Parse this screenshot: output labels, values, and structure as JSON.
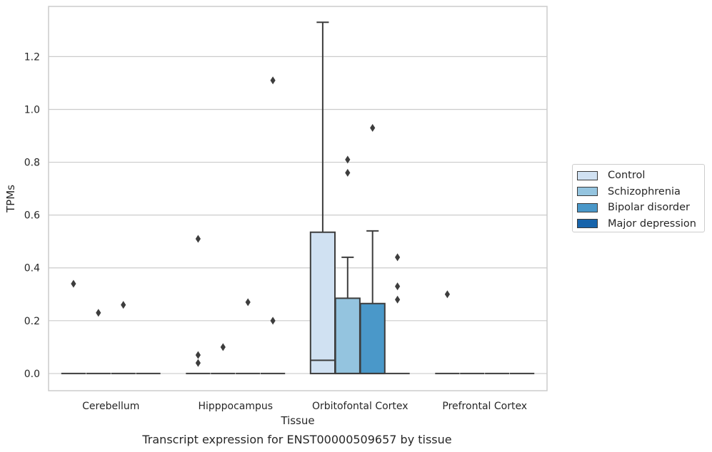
{
  "chart_data": {
    "type": "boxplot",
    "title": "",
    "caption": "Transcript expression for ENST00000509657 by tissue",
    "xlabel": "Tissue",
    "ylabel": "TPMs",
    "ylim": [
      -0.065,
      1.39
    ],
    "yticks": [
      0.0,
      0.2,
      0.4,
      0.6,
      0.8,
      1.0,
      1.2
    ],
    "ytick_labels": [
      "0.0",
      "0.2",
      "0.4",
      "0.6",
      "0.8",
      "1.0",
      "1.2"
    ],
    "categories": [
      "Cerebellum",
      "Hipppocampus",
      "Orbitofontal Cortex",
      "Prefrontal Cortex"
    ],
    "grid": "horizontal",
    "legend_position": "right",
    "series": [
      {
        "name": "Control",
        "color": "#d0e1f2",
        "boxes": [
          {
            "q1": 0,
            "median": 0,
            "q3": 0,
            "whisker_low": 0,
            "whisker_high": 0,
            "outliers": [
              0.34
            ]
          },
          {
            "q1": 0,
            "median": 0,
            "q3": 0,
            "whisker_low": 0,
            "whisker_high": 0,
            "outliers": [
              0.51,
              0.07,
              0.04
            ]
          },
          {
            "q1": 0,
            "median": 0.05,
            "q3": 0.535,
            "whisker_low": 0,
            "whisker_high": 1.33,
            "outliers": []
          },
          {
            "q1": 0,
            "median": 0,
            "q3": 0,
            "whisker_low": 0,
            "whisker_high": 0,
            "outliers": [
              0.3
            ]
          }
        ]
      },
      {
        "name": "Schizophrenia",
        "color": "#94c4df",
        "boxes": [
          {
            "q1": 0,
            "median": 0,
            "q3": 0,
            "whisker_low": 0,
            "whisker_high": 0,
            "outliers": [
              0.23
            ]
          },
          {
            "q1": 0,
            "median": 0,
            "q3": 0,
            "whisker_low": 0,
            "whisker_high": 0,
            "outliers": [
              0.1
            ]
          },
          {
            "q1": 0,
            "median": 0,
            "q3": 0.285,
            "whisker_low": 0,
            "whisker_high": 0.44,
            "outliers": [
              0.81,
              0.76
            ]
          },
          {
            "q1": 0,
            "median": 0,
            "q3": 0,
            "whisker_low": 0,
            "whisker_high": 0,
            "outliers": []
          }
        ]
      },
      {
        "name": "Bipolar disorder",
        "color": "#4a98c9",
        "boxes": [
          {
            "q1": 0,
            "median": 0,
            "q3": 0,
            "whisker_low": 0,
            "whisker_high": 0,
            "outliers": [
              0.26
            ]
          },
          {
            "q1": 0,
            "median": 0,
            "q3": 0,
            "whisker_low": 0,
            "whisker_high": 0,
            "outliers": [
              0.27
            ]
          },
          {
            "q1": 0,
            "median": 0,
            "q3": 0.265,
            "whisker_low": 0,
            "whisker_high": 0.54,
            "outliers": [
              0.93
            ]
          },
          {
            "q1": 0,
            "median": 0,
            "q3": 0,
            "whisker_low": 0,
            "whisker_high": 0,
            "outliers": []
          }
        ]
      },
      {
        "name": "Major depression",
        "color": "#1764ab",
        "boxes": [
          {
            "q1": 0,
            "median": 0,
            "q3": 0,
            "whisker_low": 0,
            "whisker_high": 0,
            "outliers": []
          },
          {
            "q1": 0,
            "median": 0,
            "q3": 0,
            "whisker_low": 0,
            "whisker_high": 0,
            "outliers": [
              1.11,
              0.2
            ]
          },
          {
            "q1": 0,
            "median": 0,
            "q3": 0,
            "whisker_low": 0,
            "whisker_high": 0,
            "outliers": [
              0.44,
              0.33,
              0.28
            ]
          },
          {
            "q1": 0,
            "median": 0,
            "q3": 0,
            "whisker_low": 0,
            "whisker_high": 0,
            "outliers": []
          }
        ]
      }
    ]
  }
}
